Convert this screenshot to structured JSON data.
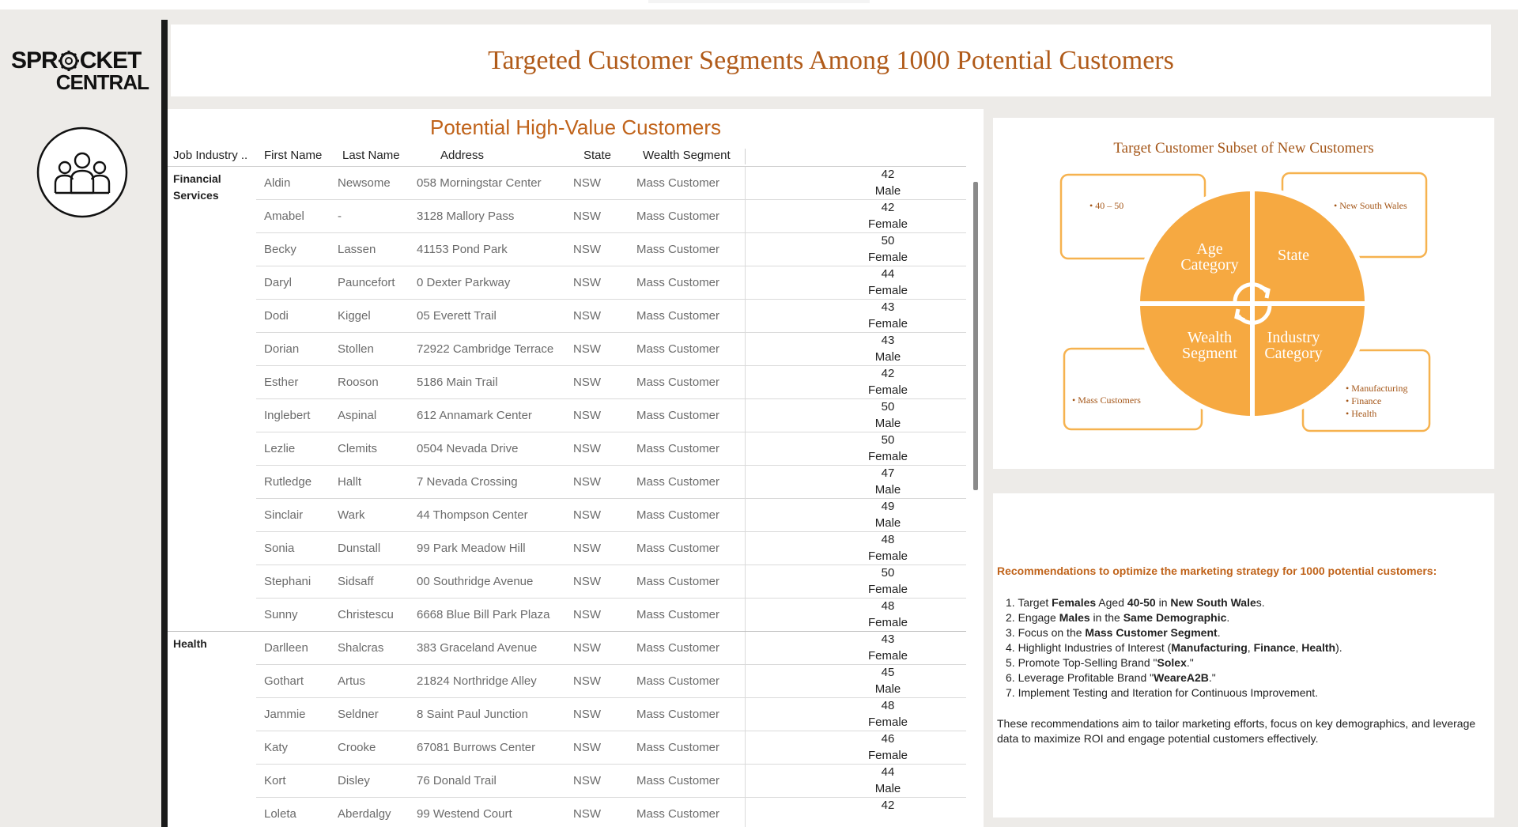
{
  "logo": {
    "line1": "SPR",
    "line1b": "CKET",
    "line2": "CENTRAL"
  },
  "header": {
    "title": "Targeted Customer Segments Among 1000 Potential Customers"
  },
  "table": {
    "title": "Potential High-Value Customers",
    "columns": [
      "Job Industry ..",
      "First Name",
      "Last Name",
      "Address",
      "State",
      "Wealth Segment"
    ],
    "groups": [
      {
        "industry_line1": "Financial",
        "industry_line2": "Services",
        "rows": [
          {
            "first": "Aldin",
            "last": "Newsome",
            "address": "058 Morningstar Center",
            "state": "NSW",
            "wealth": "Mass Customer",
            "age": "42",
            "gender": "Male"
          },
          {
            "first": "Amabel",
            "last": "-",
            "address": "3128 Mallory Pass",
            "state": "NSW",
            "wealth": "Mass Customer",
            "age": "42",
            "gender": "Female"
          },
          {
            "first": "Becky",
            "last": "Lassen",
            "address": "41153 Pond Park",
            "state": "NSW",
            "wealth": "Mass Customer",
            "age": "50",
            "gender": "Female"
          },
          {
            "first": "Daryl",
            "last": "Pauncefort",
            "address": "0 Dexter Parkway",
            "state": "NSW",
            "wealth": "Mass Customer",
            "age": "44",
            "gender": "Female"
          },
          {
            "first": "Dodi",
            "last": "Kiggel",
            "address": "05 Everett Trail",
            "state": "NSW",
            "wealth": "Mass Customer",
            "age": "43",
            "gender": "Female"
          },
          {
            "first": "Dorian",
            "last": "Stollen",
            "address": "72922 Cambridge Terrace",
            "state": "NSW",
            "wealth": "Mass Customer",
            "age": "43",
            "gender": "Male"
          },
          {
            "first": "Esther",
            "last": "Rooson",
            "address": "5186 Main Trail",
            "state": "NSW",
            "wealth": "Mass Customer",
            "age": "42",
            "gender": "Female"
          },
          {
            "first": "Inglebert",
            "last": "Aspinal",
            "address": "612 Annamark Center",
            "state": "NSW",
            "wealth": "Mass Customer",
            "age": "50",
            "gender": "Male"
          },
          {
            "first": "Lezlie",
            "last": "Clemits",
            "address": "0504 Nevada Drive",
            "state": "NSW",
            "wealth": "Mass Customer",
            "age": "50",
            "gender": "Female"
          },
          {
            "first": "Rutledge",
            "last": "Hallt",
            "address": "7 Nevada Crossing",
            "state": "NSW",
            "wealth": "Mass Customer",
            "age": "47",
            "gender": "Male"
          },
          {
            "first": "Sinclair",
            "last": "Wark",
            "address": "44 Thompson Center",
            "state": "NSW",
            "wealth": "Mass Customer",
            "age": "49",
            "gender": "Male"
          },
          {
            "first": "Sonia",
            "last": "Dunstall",
            "address": "99 Park Meadow Hill",
            "state": "NSW",
            "wealth": "Mass Customer",
            "age": "48",
            "gender": "Female"
          },
          {
            "first": "Stephani",
            "last": "Sidsaff",
            "address": "00 Southridge Avenue",
            "state": "NSW",
            "wealth": "Mass Customer",
            "age": "50",
            "gender": "Female"
          },
          {
            "first": "Sunny",
            "last": "Christescu",
            "address": "6668 Blue Bill Park Plaza",
            "state": "NSW",
            "wealth": "Mass Customer",
            "age": "48",
            "gender": "Female"
          }
        ]
      },
      {
        "industry_line1": "Health",
        "industry_line2": "",
        "rows": [
          {
            "first": "Darlleen",
            "last": "Shalcras",
            "address": "383 Graceland Avenue",
            "state": "NSW",
            "wealth": "Mass Customer",
            "age": "43",
            "gender": "Female"
          },
          {
            "first": "Gothart",
            "last": "Artus",
            "address": "21824 Northridge Alley",
            "state": "NSW",
            "wealth": "Mass Customer",
            "age": "45",
            "gender": "Male"
          },
          {
            "first": "Jammie",
            "last": "Seldner",
            "address": "8 Saint Paul Junction",
            "state": "NSW",
            "wealth": "Mass Customer",
            "age": "48",
            "gender": "Female"
          },
          {
            "first": "Katy",
            "last": "Crooke",
            "address": "67081 Burrows Center",
            "state": "NSW",
            "wealth": "Mass Customer",
            "age": "46",
            "gender": "Female"
          },
          {
            "first": "Kort",
            "last": "Disley",
            "address": "76 Donald Trail",
            "state": "NSW",
            "wealth": "Mass Customer",
            "age": "44",
            "gender": "Male"
          },
          {
            "first": "Loleta",
            "last": "Aberdalgy",
            "address": "99 Westend Court",
            "state": "NSW",
            "wealth": "Mass Customer",
            "age": "42",
            "gender": ""
          }
        ]
      }
    ]
  },
  "segments": {
    "title": "Target Customer Subset of New Customers",
    "quadrants": {
      "age_line1": "Age",
      "age_line2": "Category",
      "state": "State",
      "wealth_line1": "Wealth",
      "wealth_line2": "Segment",
      "industry_line1": "Industry",
      "industry_line2": "Category"
    },
    "callouts": {
      "age": "• 40 – 50",
      "state": "• New South Wales",
      "wealth": "• Mass Customers",
      "industry": [
        "• Manufacturing",
        "• Finance",
        "• Health"
      ]
    },
    "colors": {
      "accent": "#f6a941",
      "border": "#f6b24f",
      "text": "#a45618"
    }
  },
  "recommendations": {
    "heading": "Recommendations to optimize the marketing strategy for 1000 potential customers:",
    "items": [
      {
        "n": "1.",
        "parts": [
          [
            "Target ",
            false
          ],
          [
            "Females",
            true
          ],
          [
            " Aged ",
            false
          ],
          [
            "40-50",
            true
          ],
          [
            " in ",
            false
          ],
          [
            "New South Wale",
            true
          ],
          [
            "s.",
            false
          ]
        ]
      },
      {
        "n": "2.",
        "parts": [
          [
            "Engage ",
            false
          ],
          [
            "Males",
            true
          ],
          [
            " in the ",
            false
          ],
          [
            "Same Demographic",
            true
          ],
          [
            ".",
            false
          ]
        ]
      },
      {
        "n": "3.",
        "parts": [
          [
            "Focus on the ",
            false
          ],
          [
            "Mass Customer Segment",
            true
          ],
          [
            ".",
            false
          ]
        ]
      },
      {
        "n": "4.",
        "parts": [
          [
            "Highlight Industries of Interest (",
            false
          ],
          [
            "Manufacturing",
            true
          ],
          [
            ", ",
            false
          ],
          [
            "Finance",
            true
          ],
          [
            ", ",
            false
          ],
          [
            "Health",
            true
          ],
          [
            ").",
            false
          ]
        ]
      },
      {
        "n": "5.",
        "parts": [
          [
            "Promote Top-Selling Brand \"",
            false
          ],
          [
            "Solex",
            true
          ],
          [
            ".\"",
            false
          ]
        ]
      },
      {
        "n": "6.",
        "parts": [
          [
            "Leverage Profitable Brand \"",
            false
          ],
          [
            "WeareA2B",
            true
          ],
          [
            ".\"",
            false
          ]
        ]
      },
      {
        "n": "7.",
        "parts": [
          [
            "Implement Testing and Iteration for Continuous Improvement.",
            false
          ]
        ]
      }
    ],
    "footer": "These recommendations aim to tailor marketing efforts, focus on key demographics, and leverage data to maximize ROI and engage potential customers effectively."
  }
}
